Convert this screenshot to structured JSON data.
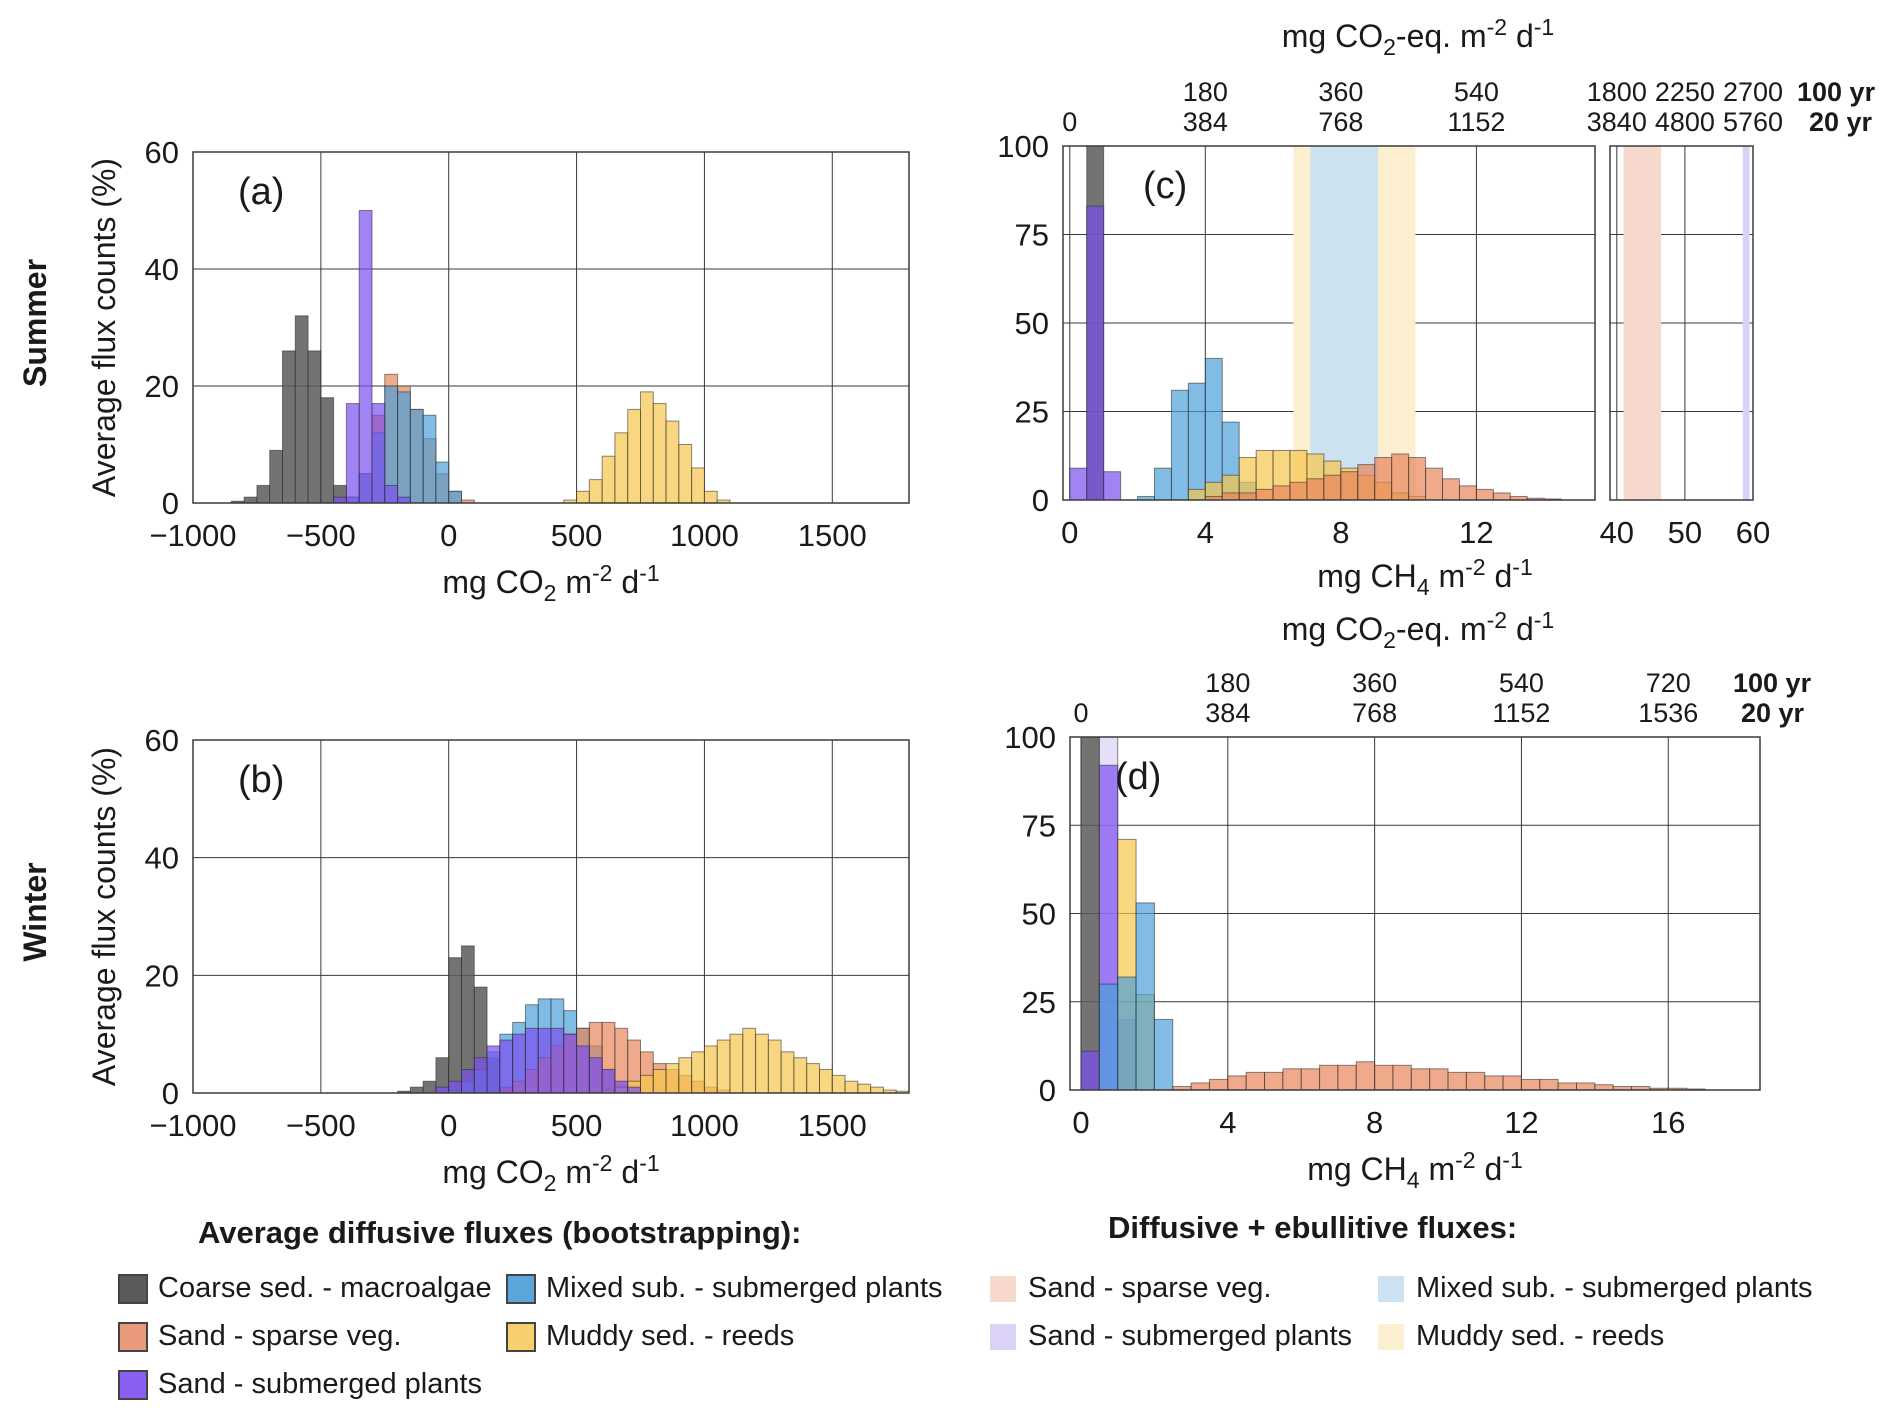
{
  "row_labels": {
    "summer": "Summer",
    "winter": "Winter"
  },
  "colors": {
    "coarse": "#5a5a5a",
    "mixed": "#4a9fd8",
    "sand": "#e8845a",
    "submerged": "#7a4ef0",
    "muddy": "#f6c64a"
  },
  "legend": {
    "diffusive_title": "Average diffusive fluxes (bootstrapping):",
    "combined_title": "Diffusive + ebullitive fluxes:",
    "diffusive_items": [
      {
        "label": "Coarse sed. - macroalgae",
        "color": "#5a5a5a"
      },
      {
        "label": "Mixed sub. - submerged plants",
        "color": "#5aa6da"
      },
      {
        "label": "Sand - sparse veg.",
        "color": "#ea9a7c"
      },
      {
        "label": "Muddy sed. - reeds",
        "color": "#f6cf6e"
      },
      {
        "label": "Sand - submerged plants",
        "color": "#8a60f2"
      }
    ],
    "combined_items": [
      {
        "label": "Sand - sparse veg.",
        "color": "#f6d8cc"
      },
      {
        "label": "Mixed sub. - submerged plants",
        "color": "#cde2f1"
      },
      {
        "label": "Sand - submerged plants",
        "color": "#dcd2f8"
      },
      {
        "label": "Muddy sed. - reeds",
        "color": "#fbefcf"
      }
    ]
  },
  "chart_data": [
    {
      "id": "a",
      "panel_label": "(a)",
      "type": "bar",
      "subtype": "histogram",
      "xlabel": "mg CO",
      "xlabel_sub": "2",
      "xlabel_unit": " m",
      "xlabel_sup": "-2",
      "xlabel_end": " d",
      "xlabel_sup2": "-1",
      "ylabel": "Average flux counts (%)",
      "xlim": [
        -1000,
        1800
      ],
      "ylim": [
        0,
        60
      ],
      "xticks": [
        -1000,
        -500,
        0,
        500,
        1000,
        1500
      ],
      "yticks": [
        0,
        20,
        40,
        60
      ],
      "grid": true,
      "bin_width": 50,
      "series": [
        {
          "name": "Coarse sed. - macroalgae",
          "color": "#5a5a5a",
          "x": [
            -850,
            -800,
            -750,
            -700,
            -650,
            -600,
            -550,
            -500,
            -450
          ],
          "values": [
            0.3,
            1,
            3,
            9,
            26,
            32,
            26,
            18,
            3
          ]
        },
        {
          "name": "Sand - sparse veg.",
          "color": "#e8845a",
          "x": [
            -400,
            -350,
            -300,
            -250,
            -200,
            -150,
            -100,
            -50,
            0,
            50
          ],
          "values": [
            1,
            5,
            15,
            22,
            20,
            16,
            11,
            5,
            2,
            0.5
          ]
        },
        {
          "name": "Mixed sub. - submerged plants",
          "color": "#4a9fd8",
          "x": [
            -400,
            -350,
            -300,
            -250,
            -200,
            -150,
            -100,
            -50,
            0
          ],
          "values": [
            1,
            5,
            12,
            20,
            19,
            16,
            15,
            7,
            2
          ]
        },
        {
          "name": "Muddy sed. - reeds",
          "color": "#f6c64a",
          "x": [
            450,
            500,
            550,
            600,
            650,
            700,
            750,
            800,
            850,
            900,
            950,
            1000,
            1050
          ],
          "values": [
            0.5,
            2,
            4,
            8,
            12,
            16,
            19,
            17,
            14,
            10,
            6,
            2,
            0.5
          ]
        },
        {
          "name": "Sand - submerged plants",
          "color": "#7a4ef0",
          "x": [
            -450,
            -400,
            -350,
            -300,
            -250,
            -200
          ],
          "values": [
            1,
            17,
            50,
            17,
            3,
            1
          ]
        }
      ]
    },
    {
      "id": "b",
      "panel_label": "(b)",
      "type": "bar",
      "subtype": "histogram",
      "xlabel": "mg CO",
      "xlabel_sub": "2",
      "xlabel_unit": " m",
      "xlabel_sup": "-2",
      "xlabel_end": " d",
      "xlabel_sup2": "-1",
      "ylabel": "Average flux counts (%)",
      "xlim": [
        -1000,
        1800
      ],
      "ylim": [
        0,
        60
      ],
      "xticks": [
        -1000,
        -500,
        0,
        500,
        1000,
        1500
      ],
      "yticks": [
        0,
        20,
        40,
        60
      ],
      "grid": true,
      "bin_width": 50,
      "series": [
        {
          "name": "Coarse sed. - macroalgae",
          "color": "#5a5a5a",
          "x": [
            -200,
            -150,
            -100,
            -50,
            0,
            50,
            100,
            150,
            200,
            250
          ],
          "values": [
            0.3,
            1,
            2,
            6,
            23,
            25,
            18,
            6,
            1,
            0.3
          ]
        },
        {
          "name": "Mixed sub. - submerged plants",
          "color": "#4a9fd8",
          "x": [
            0,
            50,
            100,
            150,
            200,
            250,
            300,
            350,
            400,
            450,
            500,
            550,
            600,
            650
          ],
          "values": [
            0.5,
            2,
            4,
            7,
            10,
            12,
            15,
            16,
            16,
            14,
            11,
            8,
            4,
            1
          ]
        },
        {
          "name": "Sand - sparse veg.",
          "color": "#e8845a",
          "x": [
            200,
            250,
            300,
            350,
            400,
            450,
            500,
            550,
            600,
            650,
            700,
            750,
            800,
            850,
            900,
            950,
            1000,
            1050
          ],
          "values": [
            1,
            2,
            4,
            6,
            8,
            10,
            11,
            12,
            12,
            11,
            9,
            7,
            5,
            4,
            3,
            2,
            1,
            0.5
          ]
        },
        {
          "name": "Muddy sed. - reeds",
          "color": "#f6c64a",
          "x": [
            600,
            650,
            700,
            750,
            800,
            850,
            900,
            950,
            1000,
            1050,
            1100,
            1150,
            1200,
            1250,
            1300,
            1350,
            1400,
            1450,
            1500,
            1550,
            1600,
            1650,
            1700,
            1750
          ],
          "values": [
            0.5,
            1,
            2,
            3,
            4,
            5,
            6,
            7,
            8,
            9,
            10,
            11,
            10,
            9,
            7,
            6,
            5,
            4,
            3,
            2,
            1.5,
            1,
            0.5,
            0.3
          ]
        },
        {
          "name": "Sand - submerged plants",
          "color": "#7a4ef0",
          "x": [
            -50,
            0,
            50,
            100,
            150,
            200,
            250,
            300,
            350,
            400,
            450,
            500,
            550,
            600,
            650,
            700
          ],
          "values": [
            1,
            2,
            4,
            6,
            8,
            9,
            10,
            11,
            11,
            11,
            10,
            8,
            6,
            4,
            2,
            1
          ]
        }
      ]
    },
    {
      "id": "c",
      "panel_label": "(c)",
      "type": "bar",
      "subtype": "histogram",
      "xlabel": "mg CH",
      "xlabel_sub": "4",
      "xlabel_unit": " m",
      "xlabel_sup": "-2",
      "xlabel_end": " d",
      "xlabel_sup2": "-1",
      "top_xlabel": "mg CO",
      "top_xlabel_sub": "2",
      "top_xlabel_end": "-eq. m",
      "top_xlabel_sup": "-2",
      "top_xlabel_end2": " d",
      "top_xlabel_sup2": "-1",
      "ylim": [
        0,
        100
      ],
      "yticks": [
        0,
        25,
        50,
        75,
        100
      ],
      "grid": true,
      "bin_width": 0.5,
      "broken_axis": true,
      "left_xlim": [
        -0.2,
        15.5
      ],
      "left_xticks": [
        0,
        4,
        8,
        12
      ],
      "right_xlim": [
        39,
        60
      ],
      "right_xticks": [
        40,
        50,
        60
      ],
      "top_ticks_left": [
        {
          "x": 0,
          "v100": "",
          "v20": "0"
        },
        {
          "x": 4,
          "v100": "180",
          "v20": "384"
        },
        {
          "x": 8,
          "v100": "360",
          "v20": "768"
        },
        {
          "x": 12,
          "v100": "540",
          "v20": "1152"
        }
      ],
      "top_ticks_right": [
        {
          "x": 40,
          "v100": "1800",
          "v20": "3840"
        },
        {
          "x": 50,
          "v100": "2250",
          "v20": "4800"
        },
        {
          "x": 60,
          "v100": "2700",
          "v20": "5760"
        }
      ],
      "horizon_labels": [
        "100 yr",
        "20 yr"
      ],
      "spans": [
        {
          "name": "Muddy sed. - reeds",
          "color": "#fbefcf",
          "from": 6.6,
          "to": 10.2
        },
        {
          "name": "Mixed sub. - submerged plants",
          "color": "#cde2f1",
          "from": 7.1,
          "to": 9.1
        },
        {
          "name": "Sand - sparse veg.",
          "color": "#f6d8cc",
          "from": 41,
          "to": 46.5
        },
        {
          "name": "Sand - submerged plants",
          "color": "#dcd2f8",
          "from": 58.5,
          "to": 59.5
        }
      ],
      "series": [
        {
          "name": "Coarse sed. - macroalgae",
          "color": "#5a5a5a",
          "x": [
            0.5
          ],
          "values": [
            100
          ]
        },
        {
          "name": "Sand - submerged plants",
          "color": "#7a4ef0",
          "x": [
            0,
            0.5,
            1
          ],
          "values": [
            9,
            83,
            8
          ]
        },
        {
          "name": "Mixed sub. - submerged plants",
          "color": "#4a9fd8",
          "x": [
            2,
            2.5,
            3,
            3.5,
            4,
            4.5,
            5
          ],
          "values": [
            1,
            9,
            31,
            33,
            40,
            22,
            5
          ]
        },
        {
          "name": "Muddy sed. - reeds",
          "color": "#f6c64a",
          "x": [
            3.5,
            4,
            4.5,
            5,
            5.5,
            6,
            6.5,
            7,
            7.5,
            8,
            8.5,
            9,
            9.5,
            10
          ],
          "values": [
            3,
            5,
            7,
            12,
            14,
            14,
            14,
            13,
            11,
            9,
            7,
            5,
            2,
            1
          ]
        },
        {
          "name": "Sand - sparse veg.",
          "color": "#e8845a",
          "x": [
            4,
            4.5,
            5,
            5.5,
            6,
            6.5,
            7,
            7.5,
            8,
            8.5,
            9,
            9.5,
            10,
            10.5,
            11,
            11.5,
            12,
            12.5,
            13,
            13.5,
            14
          ],
          "values": [
            1,
            2,
            2,
            3,
            4,
            5,
            6,
            7,
            8,
            10,
            12,
            13,
            12,
            9,
            6,
            4,
            3,
            2,
            1,
            0.5,
            0.3
          ]
        }
      ]
    },
    {
      "id": "d",
      "panel_label": "(d)",
      "type": "bar",
      "subtype": "histogram",
      "xlabel": "mg CH",
      "xlabel_sub": "4",
      "xlabel_unit": " m",
      "xlabel_sup": "-2",
      "xlabel_end": " d",
      "xlabel_sup2": "-1",
      "top_xlabel": "mg CO",
      "top_xlabel_sub": "2",
      "top_xlabel_end": "-eq. m",
      "top_xlabel_sup": "-2",
      "top_xlabel_end2": " d",
      "top_xlabel_sup2": "-1",
      "xlim": [
        -0.3,
        18.5
      ],
      "ylim": [
        0,
        100
      ],
      "xticks": [
        0,
        4,
        8,
        12,
        16
      ],
      "yticks": [
        0,
        25,
        50,
        75,
        100
      ],
      "grid": true,
      "bin_width": 0.5,
      "top_ticks": [
        {
          "x": 0,
          "v100": "",
          "v20": "0"
        },
        {
          "x": 4,
          "v100": "180",
          "v20": "384"
        },
        {
          "x": 8,
          "v100": "360",
          "v20": "768"
        },
        {
          "x": 12,
          "v100": "540",
          "v20": "1152"
        },
        {
          "x": 16,
          "v100": "720",
          "v20": "1536"
        }
      ],
      "horizon_labels": [
        "100 yr",
        "20 yr"
      ],
      "series": [
        {
          "name": "Coarse sed. - macroalgae",
          "color": "#5a5a5a",
          "x": [
            0
          ],
          "values": [
            100
          ]
        },
        {
          "name": "Sand - submerged plants (combined)",
          "color": "#dcd2f8",
          "x": [
            0.5
          ],
          "values": [
            100
          ]
        },
        {
          "name": "Sand - submerged plants",
          "color": "#7a4ef0",
          "x": [
            0,
            0.5,
            1
          ],
          "values": [
            11,
            92,
            20
          ]
        },
        {
          "name": "Muddy sed. - reeds",
          "color": "#f6c64a",
          "x": [
            1,
            1.5
          ],
          "values": [
            71,
            27
          ]
        },
        {
          "name": "Mixed sub. - submerged plants",
          "color": "#4a9fd8",
          "x": [
            0.5,
            1,
            1.5,
            2
          ],
          "values": [
            30,
            32,
            53,
            20
          ]
        },
        {
          "name": "Sand - sparse veg.",
          "color": "#e8845a",
          "x": [
            2.5,
            3,
            3.5,
            4,
            4.5,
            5,
            5.5,
            6,
            6.5,
            7,
            7.5,
            8,
            8.5,
            9,
            9.5,
            10,
            10.5,
            11,
            11.5,
            12,
            12.5,
            13,
            13.5,
            14,
            14.5,
            15,
            15.5,
            16,
            16.5
          ],
          "values": [
            1,
            2,
            3,
            4,
            5,
            5,
            6,
            6,
            7,
            7,
            8,
            7,
            7,
            6,
            6,
            5,
            5,
            4,
            4,
            3,
            3,
            2,
            2,
            1.5,
            1,
            1,
            0.5,
            0.5,
            0.3
          ]
        }
      ]
    }
  ]
}
